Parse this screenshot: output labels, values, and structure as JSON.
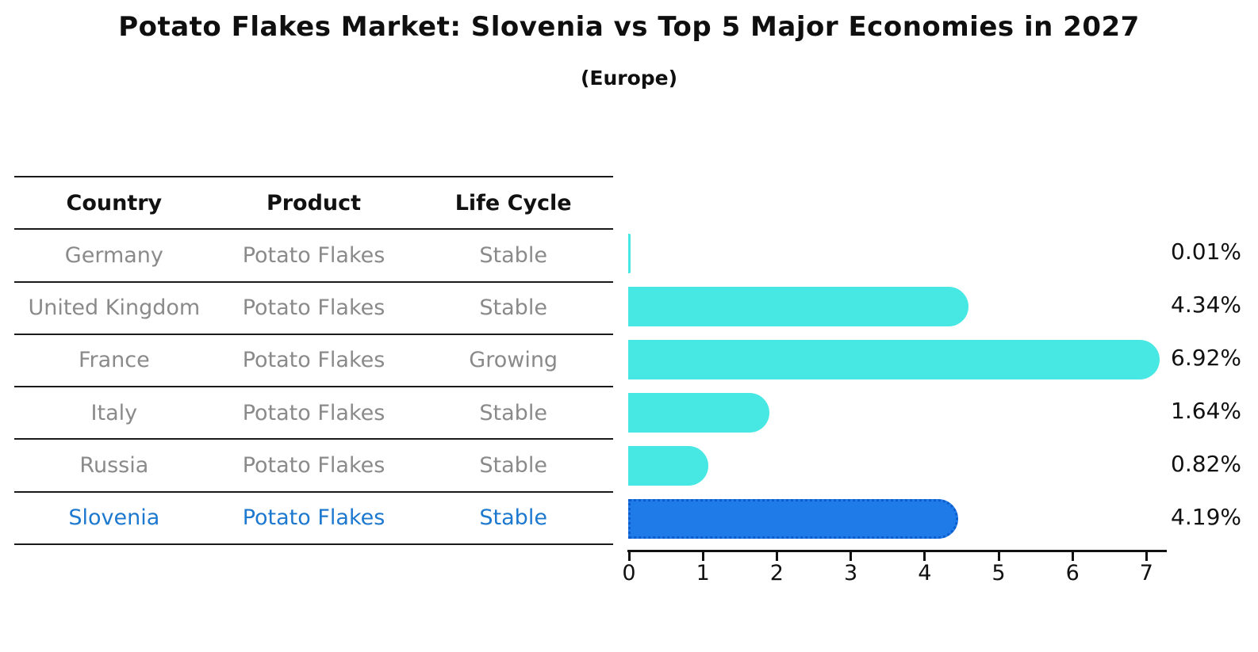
{
  "title": "Potato Flakes Market: Slovenia vs Top 5 Major Economies in 2027",
  "subtitle": "(Europe)",
  "colors": {
    "bar_default": "#47e7e3",
    "bar_highlight": "#1e7be8",
    "bar_highlight_border": "#0d5ccc",
    "highlight_text": "#1d78cf",
    "cell_text": "#8a8a8a",
    "header_text": "#111111",
    "table_line": "#1a1a1a"
  },
  "table": {
    "headers": [
      "Country",
      "Product",
      "Life Cycle"
    ],
    "rows": [
      {
        "country": "Germany",
        "product": "Potato Flakes",
        "life_cycle": "Stable",
        "highlight": false
      },
      {
        "country": "United Kingdom",
        "product": "Potato Flakes",
        "life_cycle": "Stable",
        "highlight": false
      },
      {
        "country": "France",
        "product": "Potato Flakes",
        "life_cycle": "Growing",
        "highlight": false
      },
      {
        "country": "Italy",
        "product": "Potato Flakes",
        "life_cycle": "Stable",
        "highlight": false
      },
      {
        "country": "Russia",
        "product": "Potato Flakes",
        "life_cycle": "Stable",
        "highlight": false
      },
      {
        "country": "Slovenia",
        "product": "Potato Flakes",
        "life_cycle": "Stable",
        "highlight": true
      }
    ]
  },
  "chart_data": {
    "type": "bar",
    "orientation": "horizontal",
    "title": "Potato Flakes Market: Slovenia vs Top 5 Major Economies in 2027",
    "subtitle": "(Europe)",
    "categories": [
      "Germany",
      "United Kingdom",
      "France",
      "Italy",
      "Russia",
      "Slovenia"
    ],
    "values": [
      0.01,
      4.34,
      6.92,
      1.64,
      0.82,
      4.19
    ],
    "bar_labels": [
      "0.01%",
      "4.34%",
      "6.92%",
      "1.64%",
      "0.82%",
      "4.19%"
    ],
    "highlight_index": 5,
    "xlabel": "",
    "ylabel": "",
    "xlim": [
      0,
      7
    ],
    "x_ticks": [
      0,
      1,
      2,
      3,
      4,
      5,
      6,
      7
    ],
    "grid": false,
    "legend": false
  }
}
